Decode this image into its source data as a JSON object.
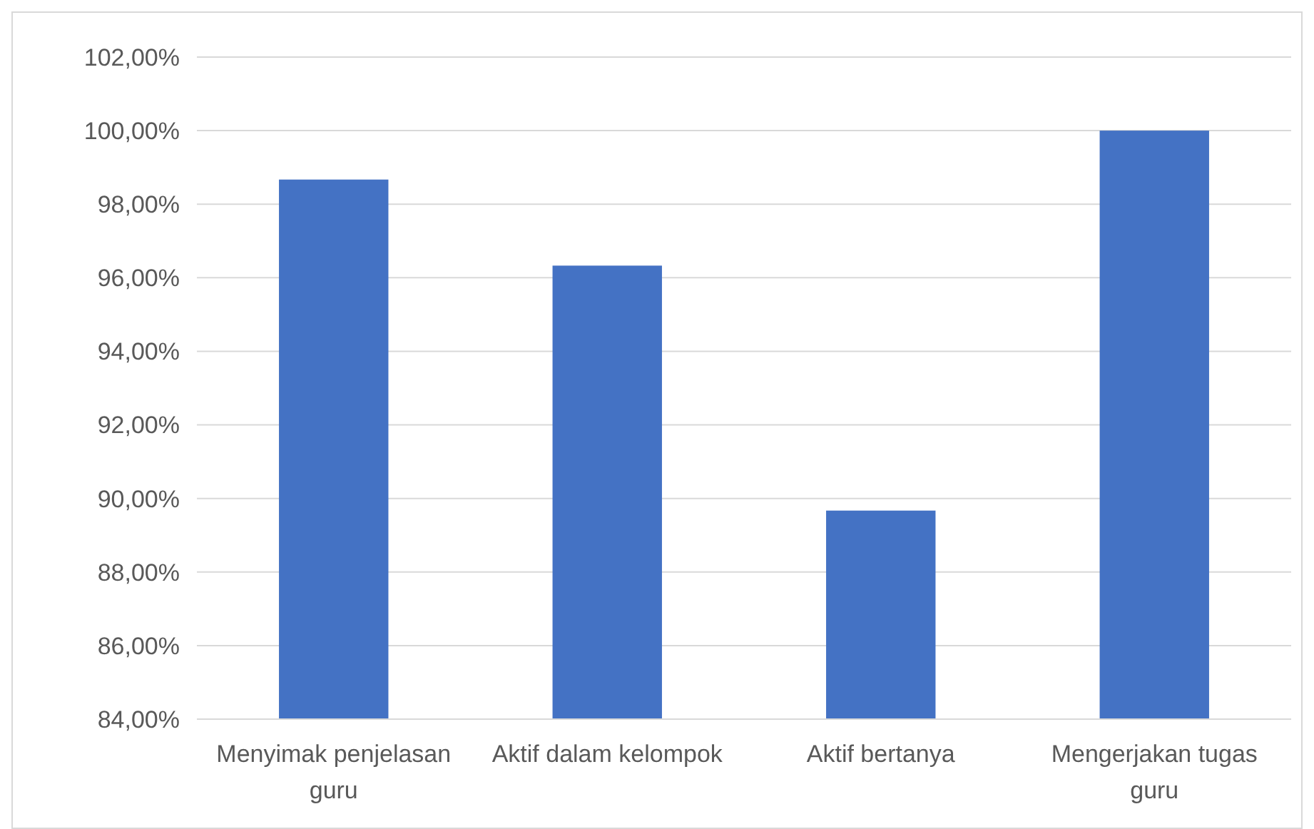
{
  "chart_data": {
    "type": "bar",
    "categories": [
      "Menyimak penjelasan guru",
      "Aktif dalam kelompok",
      "Aktif bertanya",
      "Mengerjakan tugas guru"
    ],
    "values": [
      98.67,
      96.33,
      89.67,
      100
    ],
    "color": "#4472c4",
    "ylim": [
      84,
      102
    ],
    "yticks": [
      {
        "value": 84,
        "label": "84,00%"
      },
      {
        "value": 86,
        "label": "86,00%"
      },
      {
        "value": 88,
        "label": "88,00%"
      },
      {
        "value": 90,
        "label": "90,00%"
      },
      {
        "value": 92,
        "label": "92,00%"
      },
      {
        "value": 94,
        "label": "94,00%"
      },
      {
        "value": 96,
        "label": "96,00%"
      },
      {
        "value": 98,
        "label": "98,00%"
      },
      {
        "value": 100,
        "label": "100,00%"
      },
      {
        "value": 102,
        "label": "102,00%"
      }
    ],
    "grid": true
  }
}
